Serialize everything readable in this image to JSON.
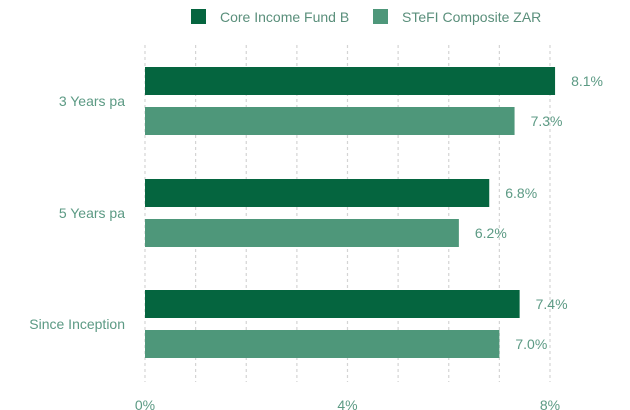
{
  "chart_data": {
    "type": "bar",
    "orientation": "horizontal",
    "categories": [
      "3 Years pa",
      "5 Years pa",
      "Since Inception"
    ],
    "series": [
      {
        "name": "Core Income Fund B",
        "values": [
          8.1,
          6.8,
          7.4
        ],
        "labels": [
          "8.1%",
          "6.8%",
          "7.4%"
        ],
        "color": "#05653f"
      },
      {
        "name": "STeFI Composite ZAR",
        "values": [
          7.3,
          6.2,
          7.0
        ],
        "labels": [
          "7.3%",
          "6.2%",
          "7.0%"
        ],
        "color": "#4e977a"
      }
    ],
    "xlim": [
      0,
      8
    ],
    "x_ticks": [
      0,
      1,
      2,
      3,
      4,
      5,
      6,
      7,
      8
    ],
    "x_tick_labels": {
      "0": "0%",
      "4": "4%",
      "8": "8%"
    },
    "grid": "vertical dashed",
    "legend_position": "top",
    "label_color": "#5c9a84",
    "grid_color": "#d4d4d4"
  }
}
